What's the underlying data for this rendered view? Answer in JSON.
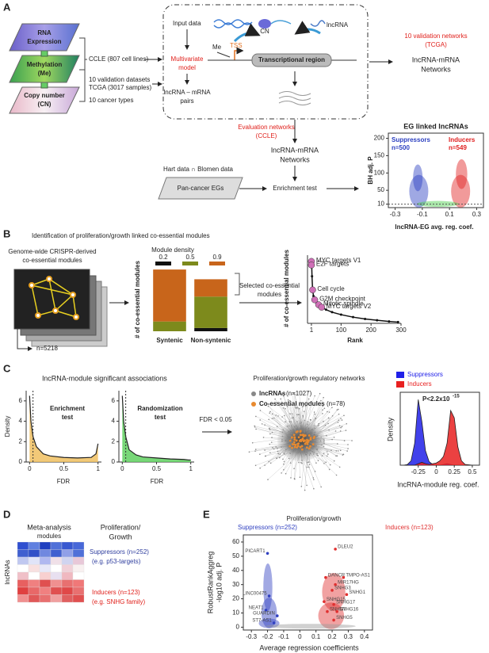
{
  "panel_a": {
    "label": "A",
    "layers": [
      [
        "RNA",
        "Expression"
      ],
      [
        "Methylation",
        "(Me)"
      ],
      [
        "Copy number",
        "(CN)"
      ]
    ],
    "sources": {
      "ccle": "CCLE (807 cell lines)",
      "tcga": [
        "10 validation datasets",
        "TCGA (3017 samples)"
      ],
      "types": "10 cancer types"
    },
    "model": {
      "input": "Input data",
      "method": [
        "Multivariate",
        "model"
      ],
      "output": [
        "lncRNA – mRNA",
        "pairs"
      ],
      "cn": "CN",
      "lncrna": "lncRNA",
      "me": "Me",
      "tss": "TSS",
      "region": "Transcriptional region"
    },
    "validation": {
      "title": [
        "10 validation networks",
        "(TCGA)"
      ],
      "networks": [
        "lncRNA-mRNA",
        "Networks"
      ]
    },
    "evaluation": {
      "title": [
        "Evaluation networks",
        "(CCLE)"
      ],
      "networks": [
        "lncRNA-mRNA",
        "Networks"
      ]
    },
    "eg": {
      "sources": "Hart data ∩ Blomen data",
      "set": "Pan-cancer EGs",
      "test": "Enrichment test"
    },
    "volcano": {
      "type": "scatter",
      "title": "EG linked lncRNAs",
      "groups": [
        {
          "name": "Suppressors",
          "n": "n=500",
          "color": "#2b3fc0"
        },
        {
          "name": "Inducers",
          "n": "n=549",
          "color": "#e02020"
        }
      ],
      "ylabel": "BH adj. P",
      "xlabel": "lncRNA-EG avg. reg. coef.",
      "xlim": [
        -0.35,
        0.35
      ],
      "ylim": [
        0,
        215
      ],
      "xticks": [
        -0.3,
        -0.1,
        0.1,
        0.3
      ],
      "yticks": [
        10,
        50,
        100,
        150,
        200
      ],
      "threshold": 10
    }
  },
  "panel_b": {
    "label": "B",
    "title": "Identification of proliferation/growth linked co-essential modules",
    "source": [
      "Genome-wide CRISPR-derived",
      "co-essential modules"
    ],
    "n": "n=5218",
    "bars": {
      "type": "stacked_bar",
      "legend_title": "Module density",
      "ylabel": "# of co-essential modules",
      "categories": [
        "Syntenic",
        "Non-syntenic"
      ],
      "ylim": [
        0,
        3000
      ],
      "series": [
        {
          "name": "0.2",
          "color": "#111111",
          "values": [
            0,
            150
          ]
        },
        {
          "name": "0.5",
          "color": "#7d8a1c",
          "values": [
            450,
            1450
          ]
        },
        {
          "name": "0.9",
          "color": "#c8651b",
          "values": [
            2400,
            800
          ]
        }
      ]
    },
    "selected": [
      "Selected co-essential",
      "modules"
    ],
    "rank": {
      "type": "line",
      "ylabel": "# of co-essential modules",
      "xlabel": "Rank",
      "x": [
        1,
        2,
        3,
        5,
        8,
        12,
        18,
        25,
        35,
        50,
        70,
        100,
        140,
        180,
        220,
        260,
        290
      ],
      "values": [
        50,
        47,
        38,
        27,
        22,
        19,
        17,
        15,
        13,
        11,
        9,
        7,
        5,
        3.5,
        2.5,
        1.5,
        1
      ],
      "xlim": [
        -12,
        300
      ],
      "ylim": [
        0,
        55
      ],
      "xticks": [
        1,
        100,
        200,
        300
      ],
      "color": "#111111",
      "highlight_color": "#d070b8",
      "highlights": [
        {
          "label": "MYC targets V1",
          "x": 1,
          "y": 50
        },
        {
          "label": "E2F targets",
          "x": 1,
          "y": 47
        },
        {
          "label": "Cell cycle",
          "x": 5,
          "y": 27
        },
        {
          "label": "G2M checkpoint",
          "x": 12,
          "y": 19
        },
        {
          "label": "Mitotic spindle",
          "x": 25,
          "y": 15
        },
        {
          "label": "MYC targets V2",
          "x": 35,
          "y": 13
        }
      ]
    }
  },
  "panel_c": {
    "label": "C",
    "title": "lncRNA-module significant associations",
    "enrichment": {
      "type": "area",
      "title": [
        "Enrichment",
        "test"
      ],
      "ylabel": "Density",
      "xlabel": "FDR",
      "x": [
        0,
        0.02,
        0.05,
        0.1,
        0.2,
        0.3,
        0.5,
        0.7,
        0.9,
        0.97,
        1
      ],
      "values": [
        6.5,
        4,
        2.5,
        1.5,
        0.8,
        0.6,
        0.45,
        0.4,
        0.45,
        0.8,
        1.8
      ],
      "xlim": [
        -0.05,
        1.05
      ],
      "ylim": [
        0,
        7
      ],
      "xticks": [
        0,
        0.5,
        1
      ],
      "yticks": [
        0,
        2,
        4,
        6
      ],
      "threshold": 0.05,
      "color": "#f0c060"
    },
    "randomization": {
      "type": "area",
      "title": [
        "Randomization",
        "test"
      ],
      "ylabel": "Density",
      "xlabel": "FDR",
      "x": [
        0,
        0.02,
        0.05,
        0.1,
        0.2,
        0.3,
        0.5,
        0.7,
        0.9,
        0.97,
        1
      ],
      "values": [
        6.5,
        4,
        2.5,
        1.2,
        0.7,
        0.5,
        0.4,
        0.3,
        0.25,
        0.2,
        0.2
      ],
      "xlim": [
        -0.05,
        1.05
      ],
      "ylim": [
        0,
        7
      ],
      "xticks": [
        0,
        0.5,
        1
      ],
      "yticks": [
        0,
        2,
        4,
        6
      ],
      "threshold": 0.05,
      "color": "#60d060"
    },
    "filter": "FDR < 0.05",
    "network": {
      "title": "Proliferation/growth regulatory networks",
      "nodes": [
        {
          "name": "lncRNAs",
          "n": "(n=1027)",
          "color": "#888888"
        },
        {
          "name": "Co-essential modules",
          "n": "(n=78)",
          "color": "#e88a30"
        }
      ]
    },
    "density": {
      "type": "density",
      "ylabel": "Density",
      "xlabel": "lncRNA-module reg. coef.",
      "pvalue": "P<2.2x10",
      "pvalue_exp": "-15",
      "x": [
        -0.45,
        -0.4,
        -0.35,
        -0.3,
        -0.25,
        -0.2,
        -0.15,
        -0.1,
        -0.05,
        0,
        0.05,
        0.1,
        0.15,
        0.2,
        0.25,
        0.3,
        0.35,
        0.4,
        0.5
      ],
      "series": [
        {
          "name": "Suppressors",
          "color": "#2020e8",
          "values": [
            0,
            0.1,
            0.6,
            3,
            9,
            6,
            2,
            0.5,
            0.1,
            0,
            0,
            0.1,
            0.2,
            0.1,
            0,
            0,
            0,
            0,
            0
          ]
        },
        {
          "name": "Inducers",
          "color": "#e82020",
          "values": [
            0,
            0,
            0,
            0,
            0.2,
            0.4,
            0.2,
            0.1,
            0.2,
            0.3,
            0.6,
            1.2,
            3,
            7.5,
            6.5,
            2.5,
            0.6,
            0.1,
            0
          ]
        }
      ],
      "xlim": [
        -0.5,
        0.6
      ],
      "ylim": [
        0,
        10
      ],
      "xticks": [
        -0.25,
        0,
        0.25,
        0.5
      ]
    }
  },
  "panel_d": {
    "label": "D",
    "title": [
      "Meta-analysis",
      "modules"
    ],
    "side": [
      "Proliferation/",
      "Growth"
    ],
    "rows_label": "lncRNAs",
    "suppressors": [
      "Suppressors (n=252)",
      "(e.g. p53-targets)"
    ],
    "inducers": [
      "Inducers (n=123)",
      "(e.g. SNHG family)"
    ]
  },
  "panel_e": {
    "label": "E",
    "type": "scatter",
    "title": "Proliferation/growth",
    "groups": [
      {
        "name": "Suppressors (n=252)",
        "color": "#3040c0"
      },
      {
        "name": "Inducers (n=123)",
        "color": "#e03030"
      }
    ],
    "ylabel": [
      "RobustRankAggreg",
      "-log10 adj. P"
    ],
    "xlabel": "Average regression coefficients",
    "xlim": [
      -0.35,
      0.45
    ],
    "ylim": [
      -2,
      65
    ],
    "xticks": [
      -0.3,
      -0.2,
      -0.1,
      0,
      0.1,
      0.2,
      0.3,
      0.4
    ],
    "yticks": [
      0,
      10,
      20,
      30,
      40,
      50,
      60
    ],
    "labels": [
      {
        "name": "PICART1",
        "x": -0.2,
        "y": 52
      },
      {
        "name": "LINC00475",
        "x": -0.19,
        "y": 22
      },
      {
        "name": "NEAT1",
        "x": -0.21,
        "y": 12
      },
      {
        "name": "GUARDIN",
        "x": -0.14,
        "y": 8
      },
      {
        "name": "ST7-AS1",
        "x": -0.16,
        "y": 3
      },
      {
        "name": "DLEU2",
        "x": 0.22,
        "y": 55
      },
      {
        "name": "DANCR",
        "x": 0.16,
        "y": 35
      },
      {
        "name": "TMPO-AS1",
        "x": 0.27,
        "y": 35
      },
      {
        "name": "MIR17HG",
        "x": 0.22,
        "y": 30
      },
      {
        "name": "SNHG3",
        "x": 0.2,
        "y": 26
      },
      {
        "name": "SNHG1",
        "x": 0.29,
        "y": 23
      },
      {
        "name": "SNHG15",
        "x": 0.15,
        "y": 18
      },
      {
        "name": "SNHG17",
        "x": 0.21,
        "y": 16
      },
      {
        "name": "SNHG7",
        "x": 0.17,
        "y": 11
      },
      {
        "name": "SNHG16",
        "x": 0.23,
        "y": 11
      },
      {
        "name": "SNHG5",
        "x": 0.21,
        "y": 5
      }
    ]
  }
}
